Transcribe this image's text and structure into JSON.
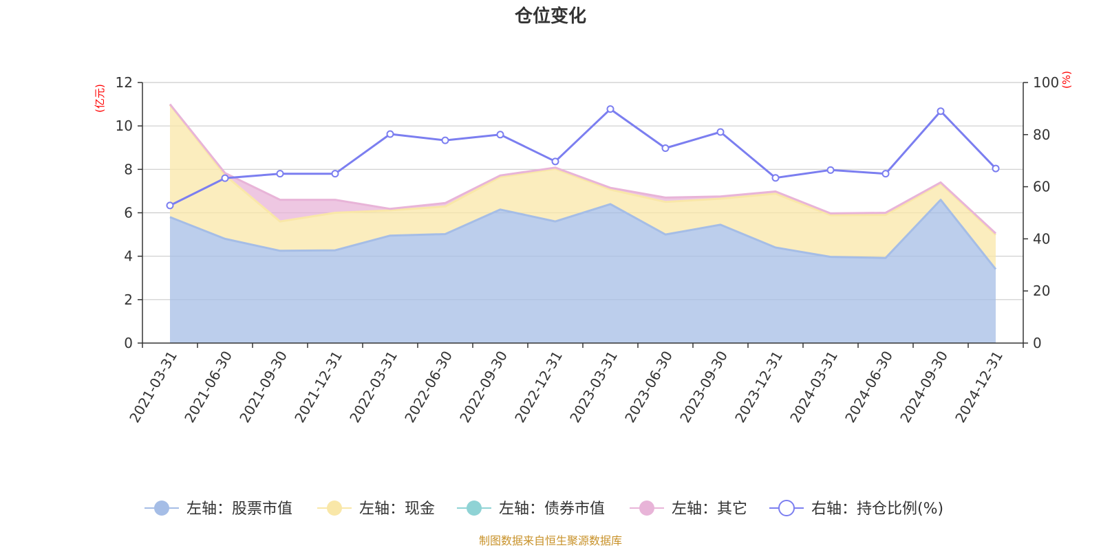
{
  "chart_data": {
    "type": "area",
    "title": "仓位变化",
    "categories": [
      "2021-03-31",
      "2021-06-30",
      "2021-09-30",
      "2021-12-31",
      "2022-03-31",
      "2022-06-30",
      "2022-09-30",
      "2022-12-31",
      "2023-03-31",
      "2023-06-30",
      "2023-09-30",
      "2023-12-31",
      "2024-03-31",
      "2024-06-30",
      "2024-09-30",
      "2024-12-31"
    ],
    "left_axis": {
      "unit": "(亿元)",
      "ylim": [
        0,
        12
      ],
      "ticks": [
        "0",
        "2",
        "4",
        "6",
        "8",
        "10",
        "12"
      ]
    },
    "right_axis": {
      "unit": "(%)",
      "ylim": [
        0,
        100
      ],
      "ticks": [
        "0",
        "20",
        "40",
        "60",
        "80",
        "100"
      ]
    },
    "series": [
      {
        "name": "左轴：股票市值",
        "axis": "left",
        "kind": "stacked-area",
        "color": "#a5bde6",
        "values": [
          5.8,
          4.8,
          4.25,
          4.27,
          4.95,
          5.02,
          6.15,
          5.6,
          6.4,
          5.0,
          5.45,
          4.4,
          3.97,
          3.92,
          6.6,
          3.4
        ]
      },
      {
        "name": "左轴：现金",
        "axis": "left",
        "kind": "stacked-area",
        "color": "#f9e7a8",
        "values": [
          5.17,
          2.93,
          1.35,
          1.73,
          1.16,
          1.27,
          1.5,
          2.42,
          0.67,
          1.5,
          1.2,
          2.48,
          1.92,
          1.98,
          0.75,
          1.58
        ]
      },
      {
        "name": "左轴：债券市值",
        "axis": "left",
        "kind": "stacked-area",
        "color": "#8fd3d5",
        "values": [
          0,
          0,
          0,
          0,
          0,
          0,
          0,
          0,
          0,
          0,
          0,
          0,
          0,
          0,
          0,
          0
        ]
      },
      {
        "name": "左轴：其它",
        "axis": "left",
        "kind": "stacked-area",
        "color": "#e8b4d8",
        "values": [
          0.03,
          0.1,
          1.0,
          0.6,
          0.07,
          0.16,
          0.07,
          0.06,
          0.08,
          0.2,
          0.1,
          0.1,
          0.08,
          0.1,
          0.05,
          0.07
        ]
      },
      {
        "name": "右轴：持仓比例(%)",
        "axis": "right",
        "kind": "line",
        "color": "#7b7ef0",
        "values": [
          52.8,
          63.3,
          65.0,
          65.0,
          80.2,
          77.8,
          80.0,
          69.7,
          89.8,
          74.8,
          81.0,
          63.4,
          66.4,
          65.0,
          89.0,
          67.0
        ]
      }
    ],
    "grid": true,
    "legend_position": "bottom"
  },
  "legend": {
    "stock": "左轴：股票市值",
    "cash": "左轴：现金",
    "bond": "左轴：债券市值",
    "other": "左轴：其它",
    "ratio": "右轴：持仓比例(%)"
  },
  "source_text": "制图数据来自恒生聚源数据库"
}
